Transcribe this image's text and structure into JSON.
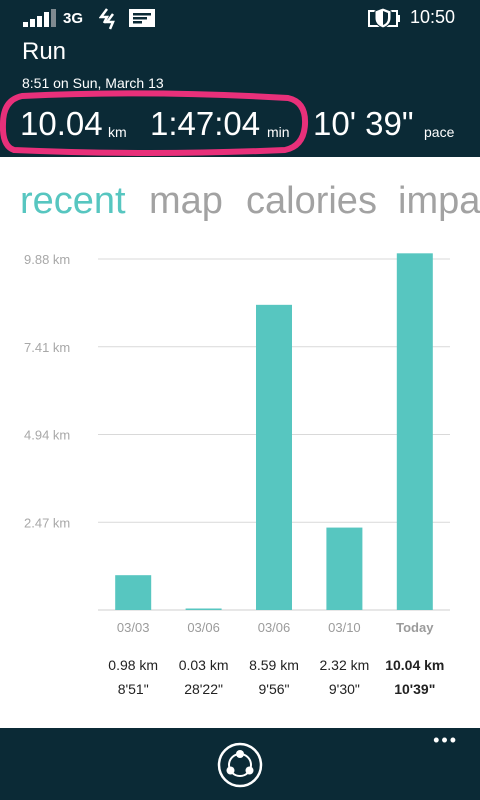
{
  "status_bar": {
    "network": "3G",
    "time": "10:50"
  },
  "header": {
    "title": "Run",
    "subtitle": "8:51 on Sun, March 13",
    "distance": {
      "value": "10.04",
      "unit": "km"
    },
    "duration": {
      "value": "1:47:04",
      "unit": "min"
    },
    "pace": {
      "value": "10' 39\"",
      "unit": "pace"
    }
  },
  "tabs": [
    {
      "label": "recent",
      "active": true
    },
    {
      "label": "map",
      "active": false
    },
    {
      "label": "calories",
      "active": false
    },
    {
      "label": "impa",
      "active": false
    }
  ],
  "chart_data": {
    "type": "bar",
    "categories": [
      "03/03",
      "03/06",
      "03/06",
      "03/10",
      "Today"
    ],
    "values": [
      0.98,
      0.03,
      8.59,
      2.32,
      10.04
    ],
    "ylim": [
      0,
      9.88
    ],
    "yticks": [
      2.47,
      4.94,
      7.41,
      9.88
    ],
    "ytick_labels": [
      "2.47 km",
      "4.94 km",
      "7.41 km",
      "9.88 km"
    ],
    "distance_labels": [
      "0.98 km",
      "0.03 km",
      "8.59 km",
      "2.32 km",
      "10.04 km"
    ],
    "pace_labels": [
      "8'51\"",
      "28'22\"",
      "9'56\"",
      "9'30\"",
      "10'39\""
    ],
    "grid": true,
    "bar_color": "#57c6c0",
    "highlight_last": true
  },
  "footer": {
    "more_label": "•••"
  },
  "colors": {
    "accent": "#57c6c0",
    "header_bg": "#0b2a36",
    "highlight": "#e8307a"
  }
}
